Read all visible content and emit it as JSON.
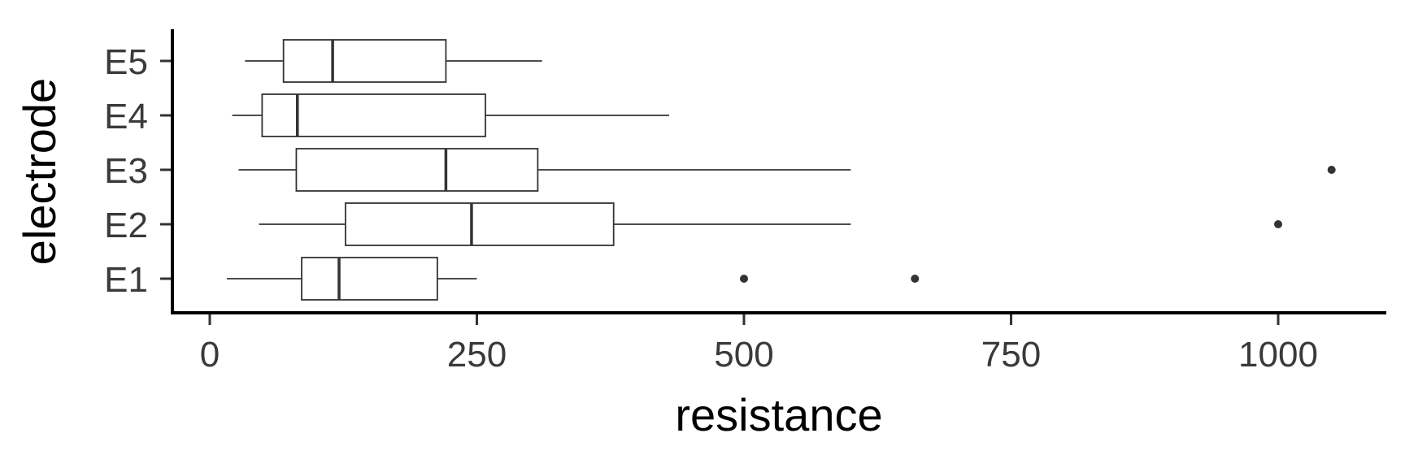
{
  "chart_data": {
    "type": "boxplot",
    "orientation": "horizontal",
    "xlabel": "resistance",
    "ylabel": "electrode",
    "xlim": [
      -36,
      1101
    ],
    "x_ticks": [
      0,
      250,
      500,
      750,
      1000
    ],
    "x_tick_labels": [
      "0",
      "250",
      "500",
      "750",
      "1000"
    ],
    "grid": false,
    "legend": "none",
    "box_fill": "#ffffff",
    "line_color": "#333333",
    "categories": [
      "E1",
      "E2",
      "E3",
      "E4",
      "E5"
    ],
    "boxes": [
      {
        "name": "E1",
        "whisker_low": 16,
        "q1": 86,
        "median": 121,
        "q3": 213,
        "whisker_high": 250,
        "outliers": [
          500,
          660
        ]
      },
      {
        "name": "E2",
        "whisker_low": 46,
        "q1": 127,
        "median": 245,
        "q3": 378,
        "whisker_high": 600,
        "outliers": [
          1000
        ]
      },
      {
        "name": "E3",
        "whisker_low": 27,
        "q1": 81,
        "median": 221,
        "q3": 307,
        "whisker_high": 600,
        "outliers": [
          1050
        ]
      },
      {
        "name": "E4",
        "whisker_low": 21,
        "q1": 49,
        "median": 82,
        "q3": 258,
        "whisker_high": 430,
        "outliers": []
      },
      {
        "name": "E5",
        "whisker_low": 33,
        "q1": 69,
        "median": 115,
        "q3": 221,
        "whisker_high": 311,
        "outliers": []
      }
    ]
  }
}
